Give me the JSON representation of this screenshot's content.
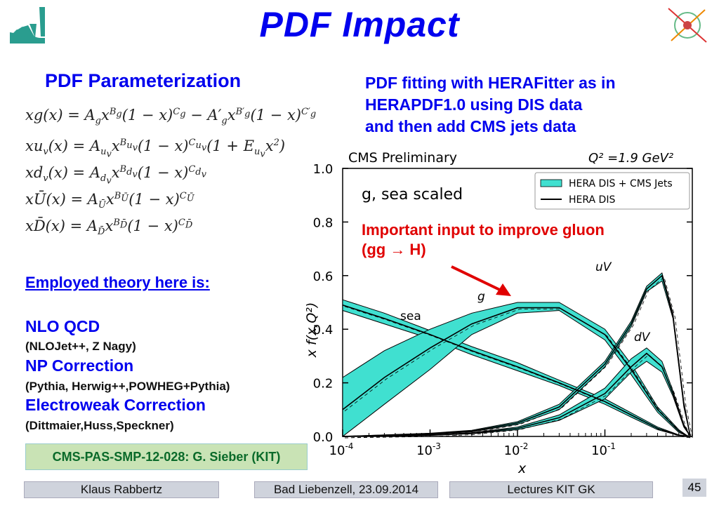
{
  "slide": {
    "title": "PDF Impact",
    "param_heading": "PDF Parameterization",
    "description": [
      "PDF fitting with HERAFitter as in",
      "HERAPDF1.0 using DIS data",
      "and then add CMS jets data"
    ],
    "theory_heading": "Employed theory here is:",
    "theory": [
      {
        "name": "NLO QCD",
        "detail": "(NLOJet++, Z Nagy)"
      },
      {
        "name": "NP Correction",
        "detail": "(Pythia, Herwig++,POWHEG+Pythia)"
      },
      {
        "name": "Electroweak Correction",
        "detail": "(Dittmaier,Huss,Speckner)"
      }
    ],
    "reference": "CMS-PAS-SMP-12-028: G. Sieber (KIT)",
    "footer": {
      "author": "Klaus Rabbertz",
      "event": "Bad Liebenzell, 23.09.2014",
      "series": "Lectures KIT GK",
      "page": "45"
    },
    "colors": {
      "accent": "#0000ee",
      "note": "#e00000",
      "band": "#40e0d0"
    }
  },
  "chart_data": {
    "type": "line",
    "title": "CMS Preliminary",
    "scale_label": "Q² =1.9 GeV²",
    "xlabel": "x",
    "ylabel": "x f(x,Q²)",
    "xscale": "log",
    "xlim": [
      0.0001,
      1
    ],
    "ylim": [
      0,
      1.0
    ],
    "xticks": [
      "10-4",
      "10-3",
      "10-2",
      "10-1"
    ],
    "yticks": [
      "0.0",
      "0.2",
      "0.4",
      "0.6",
      "0.8",
      "1.0"
    ],
    "annotation": "g, sea scaled",
    "note": [
      "Important input to improve gluon",
      "(gg → H)"
    ],
    "legend": {
      "position": "top-right",
      "entries": [
        "HERA DIS + CMS Jets",
        "HERA DIS"
      ]
    },
    "series": [
      {
        "name": "sea",
        "x": [
          0.0001,
          0.0003,
          0.001,
          0.003,
          0.01,
          0.03,
          0.1,
          0.2,
          0.4,
          0.7,
          0.9
        ],
        "center": [
          0.49,
          0.44,
          0.38,
          0.32,
          0.26,
          0.2,
          0.13,
          0.08,
          0.03,
          0.005,
          0.0
        ],
        "lower": [
          0.47,
          0.42,
          0.365,
          0.305,
          0.245,
          0.19,
          0.12,
          0.072,
          0.025,
          0.004,
          0.0
        ],
        "upper": [
          0.51,
          0.46,
          0.395,
          0.335,
          0.275,
          0.21,
          0.14,
          0.088,
          0.035,
          0.006,
          0.0
        ]
      },
      {
        "name": "g",
        "x": [
          0.0001,
          0.0003,
          0.001,
          0.003,
          0.01,
          0.03,
          0.1,
          0.2,
          0.4,
          0.7,
          0.9
        ],
        "center": [
          0.1,
          0.22,
          0.33,
          0.42,
          0.48,
          0.48,
          0.38,
          0.25,
          0.1,
          0.02,
          0.0
        ],
        "lower": [
          0.0,
          0.12,
          0.25,
          0.38,
          0.46,
          0.47,
          0.36,
          0.23,
          0.09,
          0.015,
          0.0
        ],
        "upper": [
          0.22,
          0.32,
          0.4,
          0.46,
          0.5,
          0.5,
          0.4,
          0.27,
          0.11,
          0.025,
          0.0
        ]
      },
      {
        "name": "uV",
        "x": [
          0.0001,
          0.001,
          0.003,
          0.01,
          0.03,
          0.1,
          0.2,
          0.3,
          0.45,
          0.6,
          0.8,
          0.95
        ],
        "center": [
          0.0,
          0.01,
          0.02,
          0.05,
          0.11,
          0.27,
          0.42,
          0.55,
          0.6,
          0.45,
          0.12,
          0.0
        ],
        "lower": [
          0.0,
          0.008,
          0.017,
          0.045,
          0.1,
          0.26,
          0.41,
          0.54,
          0.58,
          0.44,
          0.11,
          0.0
        ],
        "upper": [
          0.0,
          0.012,
          0.023,
          0.055,
          0.12,
          0.28,
          0.43,
          0.56,
          0.61,
          0.46,
          0.13,
          0.0
        ]
      },
      {
        "name": "dV",
        "x": [
          0.0001,
          0.001,
          0.003,
          0.01,
          0.03,
          0.1,
          0.2,
          0.3,
          0.45,
          0.6,
          0.8,
          0.95
        ],
        "center": [
          0.0,
          0.005,
          0.012,
          0.03,
          0.07,
          0.16,
          0.26,
          0.31,
          0.26,
          0.16,
          0.04,
          0.0
        ],
        "lower": [
          0.0,
          0.004,
          0.01,
          0.025,
          0.06,
          0.14,
          0.24,
          0.28,
          0.24,
          0.15,
          0.035,
          0.0
        ],
        "upper": [
          0.0,
          0.006,
          0.014,
          0.035,
          0.08,
          0.18,
          0.29,
          0.33,
          0.28,
          0.17,
          0.045,
          0.0
        ]
      }
    ]
  }
}
